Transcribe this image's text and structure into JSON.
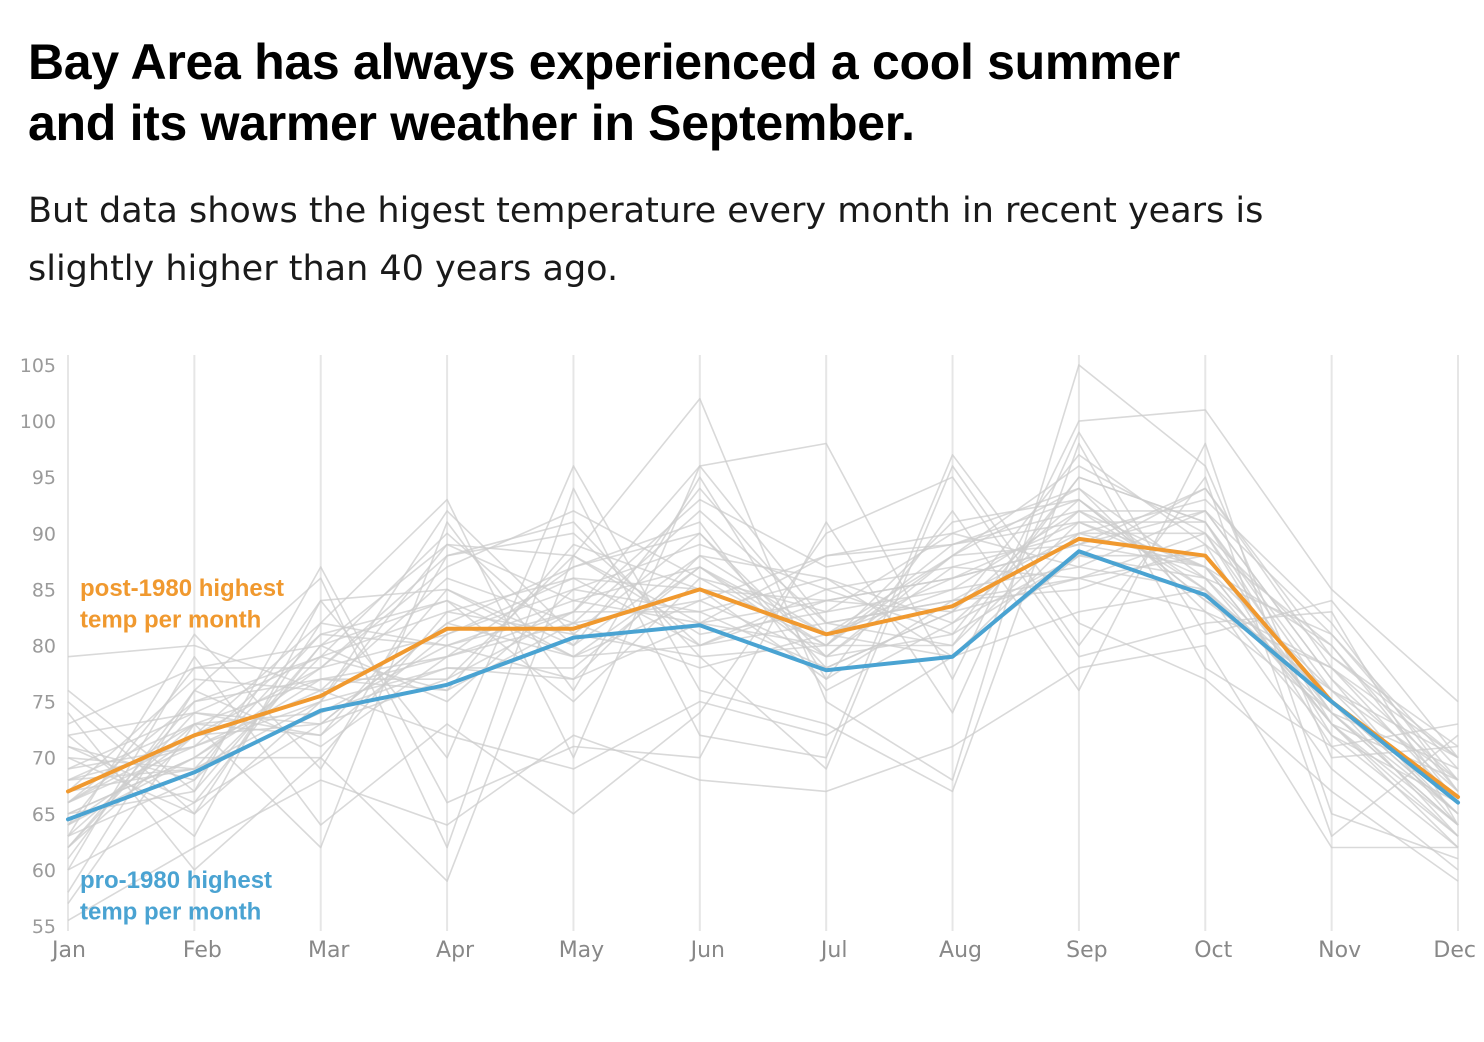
{
  "header": {
    "title_line1": "Bay Area has always experienced a cool summer",
    "title_line2": "and its warmer weather in September.",
    "subtitle_line1": "But data shows the higest temperature every month in recent years is",
    "subtitle_line2": "slightly higher than 40 years ago."
  },
  "chart_data": {
    "type": "line",
    "title": "Bay Area has always experienced a cool summer and its warmer weather in September.",
    "subtitle": "But data shows the higest temperature every month in recent years is slightly higher than 40 years ago.",
    "xlabel": "",
    "ylabel": "",
    "categories": [
      "Jan",
      "Feb",
      "Mar",
      "Apr",
      "May",
      "Jun",
      "Jul",
      "Aug",
      "Sep",
      "Oct",
      "Nov",
      "Dec"
    ],
    "ylim": [
      55,
      105
    ],
    "yticks": [
      55,
      60,
      65,
      70,
      75,
      80,
      85,
      90,
      95,
      100,
      105
    ],
    "grid": "vertical",
    "series": [
      {
        "name": "post-1980 highest temp per month",
        "color": "#f0992f",
        "values": [
          67,
          72,
          75.5,
          81.5,
          81.5,
          85,
          81,
          83.5,
          89.5,
          88,
          75,
          66.5
        ]
      },
      {
        "name": "pro-1980 highest temp per month",
        "color": "#4aa3d2",
        "values": [
          64.5,
          68.7,
          74.2,
          76.5,
          80.7,
          81.8,
          77.8,
          79,
          88.4,
          84.5,
          75,
          66
        ]
      }
    ],
    "background_series_color": "#cccccc",
    "background_series": [
      [
        73,
        78,
        80,
        89,
        88,
        82,
        80,
        89,
        92,
        87,
        73,
        68
      ],
      [
        65,
        70,
        77,
        79,
        82,
        92,
        82,
        80,
        95,
        91,
        75,
        66
      ],
      [
        60,
        66,
        73,
        77,
        83,
        83,
        78,
        83,
        86,
        90,
        74,
        64
      ],
      [
        68,
        73,
        72,
        85,
        79,
        87,
        79,
        88,
        89,
        92,
        81,
        68
      ],
      [
        62,
        72,
        78,
        81,
        86,
        80,
        84,
        86,
        91,
        86,
        73,
        63
      ],
      [
        70,
        65,
        75,
        78,
        77,
        88,
        86,
        79,
        88,
        94,
        78,
        70
      ],
      [
        64,
        70,
        70,
        83,
        81,
        79,
        80,
        91,
        93,
        84,
        76,
        65
      ],
      [
        66,
        75,
        77,
        76,
        89,
        85,
        77,
        84,
        85,
        89,
        71,
        62
      ],
      [
        71,
        68,
        79,
        90,
        80,
        94,
        81,
        79,
        90,
        87,
        80,
        67
      ],
      [
        63,
        73,
        74,
        80,
        84,
        82,
        88,
        90,
        94,
        83,
        74,
        69
      ],
      [
        67,
        69,
        81,
        84,
        75,
        86,
        83,
        85,
        87,
        92,
        77,
        64
      ],
      [
        61,
        76,
        71,
        79,
        87,
        91,
        76,
        82,
        92,
        85,
        72,
        66
      ],
      [
        69,
        71,
        76,
        86,
        82,
        78,
        81,
        88,
        96,
        90,
        79,
        71
      ],
      [
        65,
        67,
        80,
        75,
        85,
        89,
        85,
        81,
        88,
        86,
        75,
        63
      ],
      [
        72,
        74,
        73,
        82,
        79,
        84,
        79,
        87,
        90,
        93,
        82,
        67
      ],
      [
        64,
        78,
        78,
        88,
        90,
        80,
        82,
        84,
        86,
        88,
        74,
        65
      ],
      [
        66,
        72,
        82,
        80,
        83,
        93,
        87,
        89,
        93,
        84,
        78,
        68
      ],
      [
        70,
        69,
        74,
        78,
        78,
        87,
        80,
        80,
        91,
        91,
        73,
        62
      ],
      [
        62,
        75,
        79,
        83,
        86,
        85,
        84,
        86,
        89,
        87,
        76,
        70
      ],
      [
        68,
        71,
        75,
        92,
        81,
        90,
        78,
        83,
        97,
        89,
        80,
        66
      ],
      [
        66,
        73,
        77,
        77,
        88,
        81,
        83,
        90,
        87,
        85,
        74,
        64
      ],
      [
        63,
        68,
        84,
        85,
        80,
        88,
        81,
        85,
        92,
        92,
        77,
        67
      ],
      [
        69,
        74,
        72,
        81,
        85,
        83,
        86,
        82,
        88,
        88,
        75,
        65
      ],
      [
        65,
        70,
        78,
        87,
        92,
        86,
        80,
        88,
        94,
        86,
        81,
        69
      ],
      [
        67,
        77,
        76,
        79,
        83,
        96,
        82,
        84,
        90,
        90,
        72,
        63
      ],
      [
        71,
        66,
        80,
        84,
        79,
        80,
        85,
        87,
        86,
        83,
        78,
        66
      ],
      [
        64,
        72,
        73,
        82,
        87,
        90,
        79,
        81,
        95,
        91,
        76,
        68
      ],
      [
        62,
        74,
        79,
        76,
        82,
        84,
        88,
        89,
        91,
        87,
        73,
        64
      ],
      [
        68,
        69,
        75,
        89,
        84,
        87,
        81,
        86,
        89,
        94,
        79,
        70
      ],
      [
        66,
        71,
        81,
        80,
        77,
        82,
        84,
        83,
        93,
        85,
        75,
        65
      ],
      [
        79,
        80,
        76,
        72,
        69,
        75,
        72,
        79,
        83,
        85,
        69,
        60
      ],
      [
        55.5,
        62,
        68,
        64,
        72,
        68,
        67,
        71,
        78,
        80,
        62,
        62
      ],
      [
        75,
        65,
        82,
        93,
        70,
        96,
        98,
        77,
        100,
        101,
        85,
        75
      ],
      [
        58,
        76,
        86,
        62,
        94,
        72,
        70,
        97,
        82,
        77,
        67,
        59
      ],
      [
        74,
        60,
        70,
        59,
        88,
        102,
        75,
        68,
        105,
        96,
        70,
        71
      ],
      [
        60,
        79,
        64,
        73,
        65,
        74,
        90,
        95,
        79,
        82,
        83,
        64
      ],
      [
        72,
        63,
        84,
        70,
        96,
        76,
        73,
        67,
        98,
        78,
        71,
        73
      ],
      [
        57,
        73,
        62,
        91,
        76,
        95,
        77,
        92,
        76,
        98,
        65,
        61
      ],
      [
        76,
        67,
        87,
        66,
        71,
        70,
        91,
        74,
        99,
        81,
        84,
        70
      ],
      [
        63,
        81,
        69,
        88,
        91,
        79,
        69,
        96,
        80,
        95,
        63,
        72
      ]
    ]
  },
  "annotations": {
    "post_label_line1": "post-1980 highest",
    "post_label_line2": "temp per month",
    "pro_label_line1": "pro-1980 highest",
    "pro_label_line2": "temp per month"
  },
  "colors": {
    "post_1980": "#f0992f",
    "pro_1980": "#4aa3d2",
    "background_lines": "#cccccc",
    "gridlines": "#e6e6e6",
    "axis_text": "#9a9a9a"
  }
}
